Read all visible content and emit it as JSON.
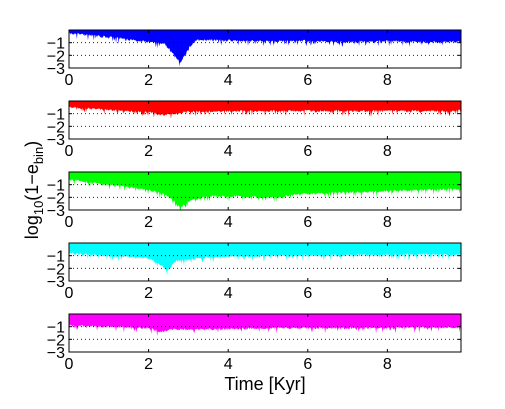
{
  "chart_data": {
    "type": "area",
    "x_range": [
      0,
      9.85
    ],
    "xticks": [
      0,
      2,
      4,
      6,
      8
    ],
    "xtick_labels": [
      "0",
      "2",
      "4",
      "6",
      "8"
    ],
    "ylim": [
      -3,
      0
    ],
    "yticks": [
      -1,
      -2,
      -3
    ],
    "ytick_labels": [
      "−1",
      "−2",
      "−3"
    ],
    "grid_y": [
      -1,
      -2
    ],
    "xlabel": "Time [Kyr]",
    "ylabel": "log10(1−e_bin)",
    "ylabel_parts": {
      "pre": "log",
      "sub1": "10",
      "mid": "(1−e",
      "sub2": "bin",
      "post": ")"
    },
    "panels": [
      {
        "color": "#0000ff",
        "dip_points": [
          {
            "x": 0.0,
            "y": -0.35
          },
          {
            "x": 1.0,
            "y": -0.65
          },
          {
            "x": 1.6,
            "y": -0.9
          },
          {
            "x": 2.0,
            "y": -1.0
          },
          {
            "x": 2.4,
            "y": -1.2
          },
          {
            "x": 2.6,
            "y": -1.9
          },
          {
            "x": 2.8,
            "y": -2.7
          },
          {
            "x": 3.0,
            "y": -1.5
          },
          {
            "x": 3.2,
            "y": -0.9
          },
          {
            "x": 4.0,
            "y": -0.9
          },
          {
            "x": 5.0,
            "y": -1.0
          },
          {
            "x": 6.0,
            "y": -0.95
          },
          {
            "x": 7.0,
            "y": -1.05
          },
          {
            "x": 8.0,
            "y": -0.95
          },
          {
            "x": 9.0,
            "y": -1.05
          },
          {
            "x": 9.85,
            "y": -1.0
          }
        ]
      },
      {
        "color": "#ff0000",
        "dip_points": [
          {
            "x": 0.0,
            "y": -0.6
          },
          {
            "x": 1.0,
            "y": -0.8
          },
          {
            "x": 2.0,
            "y": -1.0
          },
          {
            "x": 2.4,
            "y": -1.2
          },
          {
            "x": 3.0,
            "y": -0.95
          },
          {
            "x": 4.0,
            "y": -0.9
          },
          {
            "x": 5.0,
            "y": -0.9
          },
          {
            "x": 6.0,
            "y": -0.85
          },
          {
            "x": 7.0,
            "y": -0.9
          },
          {
            "x": 8.0,
            "y": -0.85
          },
          {
            "x": 9.0,
            "y": -0.9
          },
          {
            "x": 9.85,
            "y": -0.85
          }
        ]
      },
      {
        "color": "#00ff00",
        "dip_points": [
          {
            "x": 0.0,
            "y": -0.7
          },
          {
            "x": 1.0,
            "y": -1.1
          },
          {
            "x": 2.0,
            "y": -1.5
          },
          {
            "x": 2.5,
            "y": -2.0
          },
          {
            "x": 2.8,
            "y": -2.9
          },
          {
            "x": 3.0,
            "y": -2.4
          },
          {
            "x": 3.5,
            "y": -2.0
          },
          {
            "x": 4.0,
            "y": -2.0
          },
          {
            "x": 5.0,
            "y": -2.1
          },
          {
            "x": 6.0,
            "y": -1.8
          },
          {
            "x": 7.0,
            "y": -1.7
          },
          {
            "x": 8.0,
            "y": -1.6
          },
          {
            "x": 9.0,
            "y": -1.5
          },
          {
            "x": 9.85,
            "y": -1.4
          }
        ]
      },
      {
        "color": "#00ffff",
        "dip_points": [
          {
            "x": 0.0,
            "y": -0.9
          },
          {
            "x": 1.0,
            "y": -1.1
          },
          {
            "x": 2.0,
            "y": -1.3
          },
          {
            "x": 2.3,
            "y": -1.8
          },
          {
            "x": 2.45,
            "y": -2.3
          },
          {
            "x": 2.7,
            "y": -1.5
          },
          {
            "x": 3.5,
            "y": -1.2
          },
          {
            "x": 5.0,
            "y": -1.1
          },
          {
            "x": 7.0,
            "y": -1.05
          },
          {
            "x": 9.0,
            "y": -1.0
          },
          {
            "x": 9.85,
            "y": -1.0
          }
        ]
      },
      {
        "color": "#ff00ff",
        "dip_points": [
          {
            "x": 0.0,
            "y": -1.0
          },
          {
            "x": 1.0,
            "y": -1.1
          },
          {
            "x": 2.0,
            "y": -1.2
          },
          {
            "x": 2.3,
            "y": -1.5
          },
          {
            "x": 2.6,
            "y": -1.3
          },
          {
            "x": 3.5,
            "y": -1.3
          },
          {
            "x": 5.0,
            "y": -1.2
          },
          {
            "x": 7.0,
            "y": -1.2
          },
          {
            "x": 9.0,
            "y": -1.15
          },
          {
            "x": 9.85,
            "y": -1.15
          }
        ]
      }
    ]
  }
}
